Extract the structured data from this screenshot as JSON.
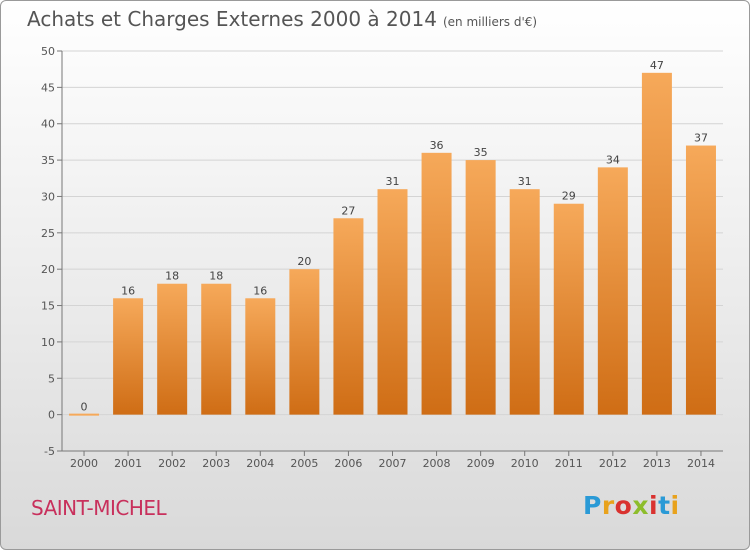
{
  "title": "Achats et Charges Externes 2000 à 2014",
  "unit": "(en milliers d'€)",
  "city": "SAINT-MICHEL",
  "logo_text": "Proxiti",
  "colors": {
    "bar_top": "#f6a95a",
    "bar_bottom": "#cf6d15",
    "city": "#c8305c",
    "grid": "#d4d4d4"
  },
  "chart_data": {
    "type": "bar",
    "categories": [
      "2000",
      "2001",
      "2002",
      "2003",
      "2004",
      "2005",
      "2006",
      "2007",
      "2008",
      "2009",
      "2010",
      "2011",
      "2012",
      "2013",
      "2014"
    ],
    "values": [
      0,
      16,
      18,
      18,
      16,
      20,
      27,
      31,
      36,
      35,
      31,
      29,
      34,
      47,
      37
    ],
    "ylim": [
      -5,
      50
    ],
    "yticks": [
      -5,
      0,
      5,
      10,
      15,
      20,
      25,
      30,
      35,
      40,
      45,
      50
    ],
    "grid": true,
    "xlabel": "",
    "ylabel": ""
  }
}
